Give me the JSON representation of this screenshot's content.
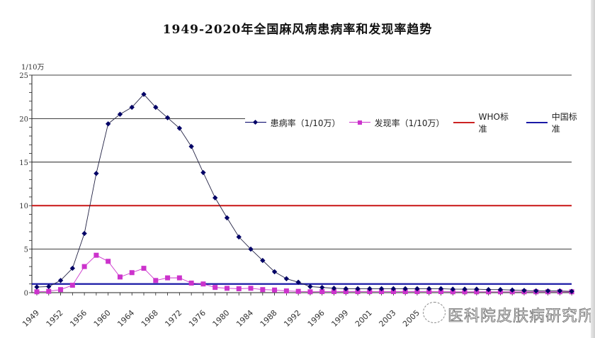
{
  "title": "1949-2020年全国麻风病患病率和发现率趋势",
  "y_unit": "1/10万",
  "legend": {
    "prevalence": "患病率（1/10万）",
    "detection": "发现率（1/10万）",
    "who": "WHO标准",
    "china": "中国标准"
  },
  "watermark": "医科院皮肤病研究所",
  "colors": {
    "prevalence": "#000066",
    "detection": "#cc33cc",
    "who": "#cc2222",
    "china": "#1a1aa6",
    "gridline": "#000000"
  },
  "chart_data": {
    "type": "line",
    "title": "1949-2020年全国麻风病患病率和发现率趋势",
    "xlabel": "",
    "ylabel": "1/10万",
    "ylim": [
      0,
      25
    ],
    "yticks": [
      0,
      5,
      10,
      15,
      20,
      25
    ],
    "grid": true,
    "legend_position": "inside-right-top",
    "x_tick_labels": [
      "1949",
      "1952",
      "1956",
      "1960",
      "1964",
      "1968",
      "1972",
      "1976",
      "1980",
      "1984",
      "1988",
      "1992",
      "1996",
      "1999",
      "2001",
      "2003",
      "2005"
    ],
    "x": [
      "1949",
      "1951",
      "1952",
      "1954",
      "1956",
      "1958",
      "1960",
      "1962",
      "1964",
      "1966",
      "1968",
      "1970",
      "1972",
      "1974",
      "1976",
      "1978",
      "1980",
      "1982",
      "1984",
      "1986",
      "1988",
      "1990",
      "1992",
      "1994",
      "1996",
      "1998",
      "1999",
      "2000",
      "2001",
      "2002",
      "2003",
      "2004",
      "2005",
      "2006",
      "2007",
      "2008",
      "2009",
      "2010",
      "2011",
      "2012",
      "2013",
      "2014",
      "2015",
      "2016",
      "2017",
      "2020"
    ],
    "series": [
      {
        "name": "患病率（1/10万）",
        "marker": "diamond",
        "values": [
          0.65,
          0.7,
          1.4,
          2.8,
          6.8,
          13.7,
          19.4,
          20.5,
          21.3,
          22.8,
          21.3,
          20.1,
          18.9,
          16.8,
          13.8,
          10.9,
          8.6,
          6.4,
          5.0,
          3.7,
          2.4,
          1.6,
          1.2,
          0.7,
          0.6,
          0.5,
          0.45,
          0.45,
          0.45,
          0.45,
          0.45,
          0.45,
          0.45,
          0.45,
          0.45,
          0.4,
          0.4,
          0.4,
          0.35,
          0.35,
          0.3,
          0.25,
          0.2,
          0.2,
          0.2,
          0.15
        ]
      },
      {
        "name": "发现率（1/10万）",
        "marker": "square",
        "values": [
          0.1,
          0.15,
          0.35,
          0.85,
          3.0,
          4.3,
          3.6,
          1.8,
          2.3,
          2.8,
          1.4,
          1.7,
          1.7,
          1.1,
          1.0,
          0.6,
          0.5,
          0.45,
          0.5,
          0.35,
          0.3,
          0.2,
          0.15,
          0.1,
          0.12,
          0.12,
          0.12,
          0.12,
          0.12,
          0.12,
          0.12,
          0.12,
          0.12,
          0.12,
          0.12,
          0.1,
          0.1,
          0.1,
          0.1,
          0.1,
          0.1,
          0.1,
          0.1,
          0.1,
          0.1,
          0.1
        ]
      },
      {
        "name": "WHO标准",
        "type": "hline",
        "value": 10
      },
      {
        "name": "中国标准",
        "type": "hline",
        "value": 1
      }
    ]
  }
}
